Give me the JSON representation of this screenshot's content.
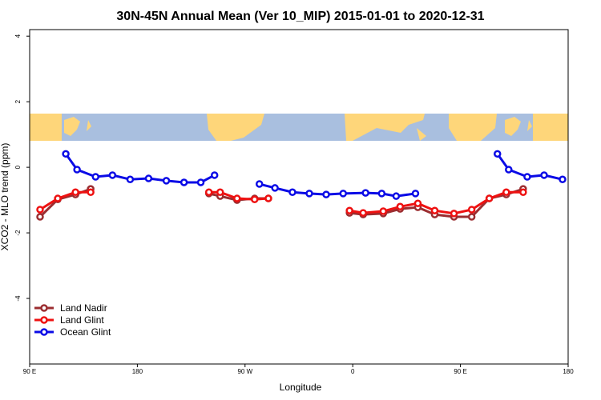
{
  "chart_data": {
    "type": "line",
    "title": "30N-45N Annual Mean (Ver 10_MIP)   2015-01-01 to 2020-12-31",
    "x_label": "Longitude",
    "y_label": "XCO2 - MLO trend (ppm)",
    "xlim": [
      90,
      540
    ],
    "ylim": [
      -6,
      4.2
    ],
    "xticks": [
      {
        "value": 90,
        "label": "90 E"
      },
      180,
      {
        "value": 270,
        "label": "90 W"
      },
      {
        "value": 360,
        "label": "0"
      },
      {
        "value": 450,
        "label": "90 E"
      },
      {
        "value": 540,
        "label": "180"
      }
    ],
    "yticks": [
      4,
      2,
      0,
      -2,
      -4
    ],
    "legend": "bottom-left",
    "series": [
      {
        "name": "Land Nadir",
        "color": "#9b2d30",
        "x": [
          98.7,
          113.5,
          128.3,
          141,
          null,
          239.8,
          249.2,
          263.3,
          278,
          289.5,
          null,
          357.3,
          368.7,
          385.5,
          399.6,
          414.4,
          428.5,
          444.6,
          459.4,
          474.1,
          488.3,
          502.4
        ],
        "values": [
          -1.51,
          -0.98,
          -0.83,
          -0.66,
          null,
          -0.8,
          -0.88,
          -1.0,
          -0.95,
          -0.95,
          null,
          -1.39,
          -1.44,
          -1.41,
          -1.27,
          -1.22,
          -1.44,
          -1.51,
          -1.51,
          -0.95,
          -0.83,
          -0.66
        ]
      },
      {
        "name": "Land Glint",
        "color": "#ee1111",
        "x": [
          98.7,
          113.5,
          128.3,
          141,
          null,
          239.8,
          249.2,
          263.3,
          278,
          289.5,
          null,
          357.3,
          368.7,
          385.5,
          399.6,
          414.4,
          428.5,
          444.6,
          459.4,
          474.1,
          488.3,
          502.4
        ],
        "values": [
          -1.29,
          -0.95,
          -0.76,
          -0.76,
          null,
          -0.76,
          -0.76,
          -0.95,
          -0.98,
          -0.95,
          null,
          -1.32,
          -1.39,
          -1.34,
          -1.2,
          -1.1,
          -1.32,
          -1.41,
          -1.29,
          -0.95,
          -0.76,
          -0.76
        ]
      },
      {
        "name": "Ocean Glint",
        "color": "#0b0be6",
        "x": [
          120.2,
          129.6,
          145.1,
          159.2,
          174,
          189.4,
          204.2,
          219,
          233,
          244.5,
          null,
          282,
          295,
          309.6,
          323.7,
          337.8,
          352,
          370.7,
          384.2,
          396.3,
          412.4,
          null,
          480.9,
          490.3,
          505.8,
          519.9,
          535.3
        ],
        "values": [
          0.41,
          -0.07,
          -0.29,
          -0.24,
          -0.37,
          -0.34,
          -0.41,
          -0.46,
          -0.46,
          -0.24,
          null,
          -0.51,
          -0.63,
          -0.76,
          -0.8,
          -0.83,
          -0.8,
          -0.78,
          -0.8,
          -0.88,
          -0.8,
          null,
          0.41,
          -0.07,
          -0.29,
          -0.24,
          -0.37
        ]
      }
    ]
  }
}
